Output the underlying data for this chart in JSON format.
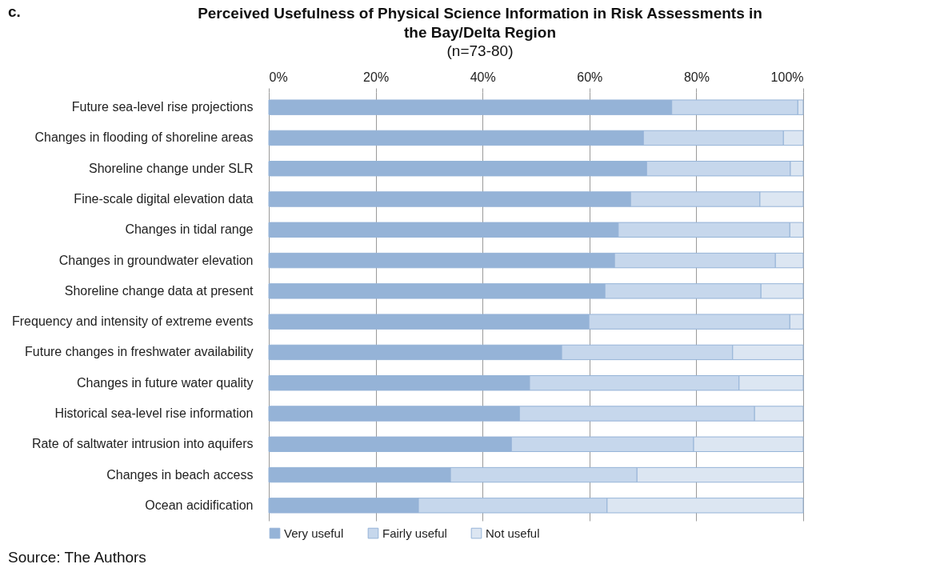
{
  "chart_data": {
    "type": "bar",
    "orientation": "horizontal",
    "stacked": true,
    "title": "Perceived Usefulness of Physical Science Information in Risk Assessments in the Bay/Delta Region",
    "subtitle": "(n=73-80)",
    "annotations": [
      "c.",
      "Source: The Authors"
    ],
    "categories": [
      "Future sea-level rise projections",
      "Changes in flooding of shoreline areas ",
      "Shoreline change under SLR",
      "Fine-scale digital elevation data",
      "Changes in tidal range",
      "Changes in groundwater elevation",
      "Shoreline change data at present",
      "Frequency and intensity of  extreme events",
      "Future changes in freshwater availability",
      "Changes in future water quality",
      "Historical sea-level rise information",
      "Rate of saltwater intrusion into aquifers",
      "Changes in beach access",
      "Ocean acidification"
    ],
    "series": [
      {
        "name": "Very useful",
        "color": "#95b3d7",
        "values": [
          75.4,
          70.1,
          70.7,
          67.7,
          65.4,
          64.7,
          62.9,
          59.9,
          54.8,
          48.8,
          46.9,
          45.4,
          34.0,
          28.0
        ]
      },
      {
        "name": "Fairly useful",
        "color": "#c6d7ec",
        "values": [
          23.6,
          26.2,
          26.9,
          24.2,
          32.1,
          30.1,
          29.2,
          37.6,
          32.0,
          39.2,
          44.0,
          34.1,
          34.9,
          35.3
        ]
      },
      {
        "name": "Not useful",
        "color": "#dce6f2",
        "values": [
          1.0,
          3.7,
          2.4,
          8.1,
          2.5,
          5.2,
          7.9,
          2.5,
          13.2,
          12.0,
          9.1,
          20.5,
          31.1,
          36.7
        ]
      }
    ],
    "xlim": [
      0,
      100
    ],
    "xticks": [
      {
        "value": 0,
        "label": "0%"
      },
      {
        "value": 20,
        "label": "20%"
      },
      {
        "value": 40,
        "label": "40%"
      },
      {
        "value": 60,
        "label": "60%"
      },
      {
        "value": 80,
        "label": "80%"
      },
      {
        "value": 100,
        "label": "100%"
      }
    ],
    "grid": "x",
    "legend": "bottom"
  }
}
